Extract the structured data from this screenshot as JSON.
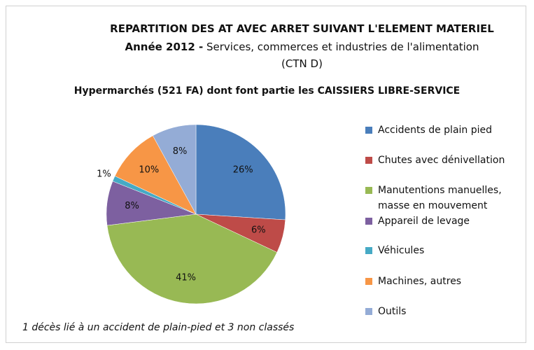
{
  "chart_data": {
    "type": "pie",
    "title": "REPARTITION DES AT AVEC ARRET SUIVANT L'ELEMENT MATERIEL",
    "subtitle_bold": "Année 2012  -",
    "subtitle": "Services, commerces et industries de l'alimentation",
    "subtitle2": "(CTN D)",
    "heading": "Hypermarchés (521 FA) dont font partie les CAISSIERS LIBRE-SERVICE",
    "annotation": "1 décès lié à un accident de plain-pied et 3 non classés",
    "categories": [
      "Accidents de plain pied",
      "Chutes avec dénivellation",
      "Manutentions manuelles, masse en mouvement",
      "Appareil de levage",
      "Véhicules",
      "Machines, autres",
      "Outils"
    ],
    "values": [
      26,
      6,
      41,
      8,
      1,
      10,
      8
    ],
    "value_labels": [
      "26%",
      "6%",
      "41%",
      "8%",
      "1%",
      "10%",
      "8%"
    ],
    "colors": [
      "#4a7ebb",
      "#be4b48",
      "#98b954",
      "#7d60a0",
      "#46aac5",
      "#f79646",
      "#94acd6"
    ],
    "legend": "right"
  }
}
